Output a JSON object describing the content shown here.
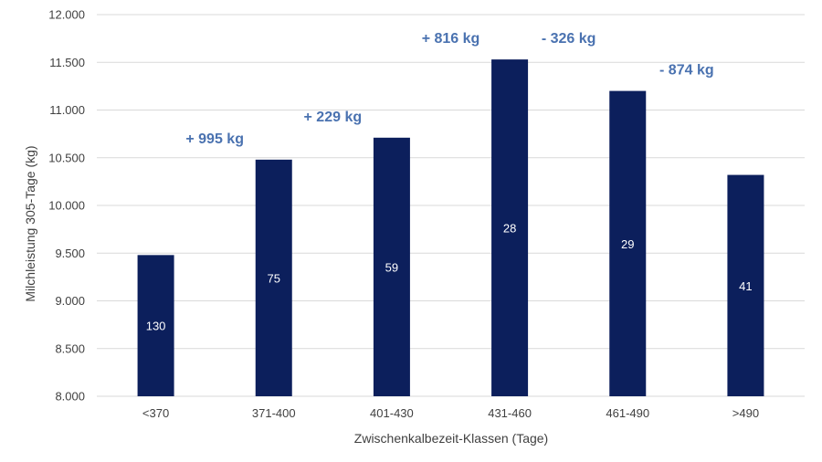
{
  "chart_data": {
    "type": "bar",
    "categories": [
      "<370",
      "371-400",
      "401-430",
      "431-460",
      "461-490",
      ">490"
    ],
    "values": [
      9480,
      10480,
      10710,
      11530,
      11200,
      10320
    ],
    "bar_labels": [
      "130",
      "75",
      "59",
      "28",
      "29",
      "41"
    ],
    "differences": [
      "+ 995 kg",
      "+ 229 kg",
      "+ 816 kg",
      "- 326 kg",
      "- 874 kg"
    ],
    "xlabel": "Zwischenkalbezeit-Klassen (Tage)",
    "ylabel": "Milchleistung 305-Tage (kg)",
    "ylim": [
      8000,
      12000
    ],
    "yticks": [
      8000,
      8500,
      9000,
      9500,
      10000,
      10500,
      11000,
      11500,
      12000
    ],
    "ytick_labels": [
      "8.000",
      "8.500",
      "9.000",
      "9.500",
      "10.000",
      "10.500",
      "11.000",
      "11.500",
      "12.000"
    ],
    "grid": true,
    "colors": {
      "bar": "#0c1f5c",
      "difference_text": "#4a72b0",
      "grid": "#d9d9d9"
    }
  }
}
